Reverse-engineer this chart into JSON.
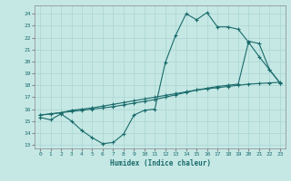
{
  "xlabel": "Humidex (Indice chaleur)",
  "bg_color": "#c5e8e5",
  "line_color": "#1a6b6b",
  "grid_color": "#aad4d0",
  "xlim": [
    -0.5,
    23.5
  ],
  "ylim": [
    12.7,
    24.7
  ],
  "yticks": [
    13,
    14,
    15,
    16,
    17,
    18,
    19,
    20,
    21,
    22,
    23,
    24
  ],
  "xticks": [
    0,
    1,
    2,
    3,
    4,
    5,
    6,
    7,
    8,
    9,
    10,
    11,
    12,
    13,
    14,
    15,
    16,
    17,
    18,
    19,
    20,
    21,
    22,
    23
  ],
  "line1_x": [
    0,
    1,
    2,
    3,
    4,
    5,
    6,
    7,
    8,
    9,
    10,
    11,
    12,
    13,
    14,
    15,
    16,
    17,
    18,
    19,
    20,
    21,
    22,
    23
  ],
  "line1_y": [
    15.3,
    15.1,
    15.6,
    15.0,
    14.2,
    13.6,
    13.1,
    13.2,
    13.9,
    15.5,
    15.9,
    16.0,
    19.9,
    22.2,
    24.0,
    23.5,
    24.1,
    22.9,
    22.9,
    22.7,
    21.6,
    20.4,
    19.3,
    18.2
  ],
  "line2_x": [
    0,
    1,
    2,
    3,
    4,
    5,
    6,
    7,
    8,
    9,
    10,
    11,
    12,
    13,
    14,
    15,
    16,
    17,
    18,
    19,
    20,
    21,
    22,
    23
  ],
  "line2_y": [
    15.5,
    15.6,
    15.7,
    15.8,
    15.9,
    16.0,
    16.1,
    16.2,
    16.35,
    16.5,
    16.65,
    16.8,
    17.0,
    17.2,
    17.4,
    17.6,
    17.75,
    17.9,
    18.0,
    18.1,
    21.7,
    21.5,
    19.3,
    18.2
  ],
  "line3_x": [
    0,
    1,
    2,
    3,
    4,
    5,
    6,
    7,
    8,
    9,
    10,
    11,
    12,
    13,
    14,
    15,
    16,
    17,
    18,
    19,
    20,
    21,
    22,
    23
  ],
  "line3_y": [
    15.5,
    15.6,
    15.7,
    15.9,
    16.0,
    16.1,
    16.25,
    16.4,
    16.55,
    16.7,
    16.85,
    17.0,
    17.15,
    17.3,
    17.45,
    17.6,
    17.7,
    17.8,
    17.9,
    18.0,
    18.1,
    18.15,
    18.2,
    18.25
  ]
}
